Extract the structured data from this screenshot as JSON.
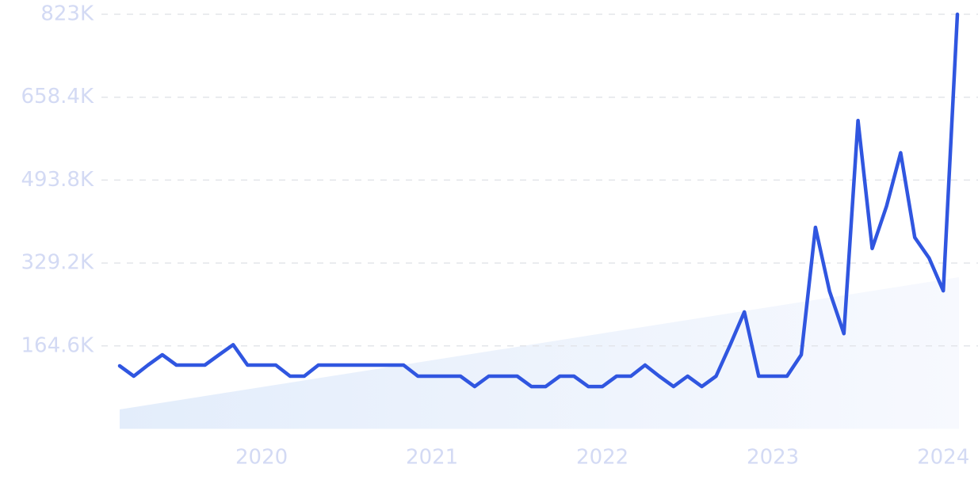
{
  "chart_data": {
    "type": "line",
    "x": [
      2019.167,
      2019.25,
      2019.333,
      2019.417,
      2019.5,
      2019.583,
      2019.667,
      2019.75,
      2019.833,
      2019.917,
      2020,
      2020.083,
      2020.167,
      2020.25,
      2020.333,
      2020.417,
      2020.5,
      2020.583,
      2020.667,
      2020.75,
      2020.833,
      2020.917,
      2021,
      2021.083,
      2021.167,
      2021.25,
      2021.333,
      2021.417,
      2021.5,
      2021.583,
      2021.667,
      2021.75,
      2021.833,
      2021.917,
      2022,
      2022.083,
      2022.167,
      2022.25,
      2022.333,
      2022.417,
      2022.5,
      2022.583,
      2022.667,
      2022.75,
      2022.833,
      2022.917,
      2023,
      2023.083,
      2023.167,
      2023.25,
      2023.333,
      2023.417,
      2023.5,
      2023.583,
      2023.667,
      2023.75,
      2023.833,
      2023.917,
      2024,
      2024.083
    ],
    "series": [
      {
        "color": "#3056e0",
        "values": [
          125000,
          104500,
          126500,
          147000,
          126500,
          126500,
          126500,
          147000,
          167000,
          126500,
          126500,
          126500,
          104500,
          104500,
          126500,
          126500,
          126500,
          126500,
          126500,
          126500,
          126500,
          104500,
          104500,
          104500,
          104500,
          84000,
          104500,
          104500,
          104500,
          84000,
          84000,
          104500,
          104500,
          84000,
          84000,
          104500,
          104500,
          126500,
          104500,
          84000,
          104500,
          84000,
          104500,
          167000,
          232000,
          104500,
          104500,
          104500,
          147000,
          400000,
          273000,
          189000,
          612000,
          358000,
          442000,
          548000,
          380000,
          339000,
          274000,
          823000
        ]
      }
    ],
    "trend": [
      38500,
      301000
    ],
    "xlim": [
      2019.167,
      2024.083
    ],
    "xticks": [
      2020,
      2021,
      2022,
      2023,
      2024
    ],
    "ylim": [
      0,
      823000
    ],
    "yticks": [
      {
        "value": 164600,
        "label": "164.6K"
      },
      {
        "value": 329200,
        "label": "329.2K"
      },
      {
        "value": 493800,
        "label": "493.8K"
      },
      {
        "value": 658400,
        "label": "658.4K"
      },
      {
        "value": 823000,
        "label": "823K"
      }
    ],
    "grid": true
  }
}
